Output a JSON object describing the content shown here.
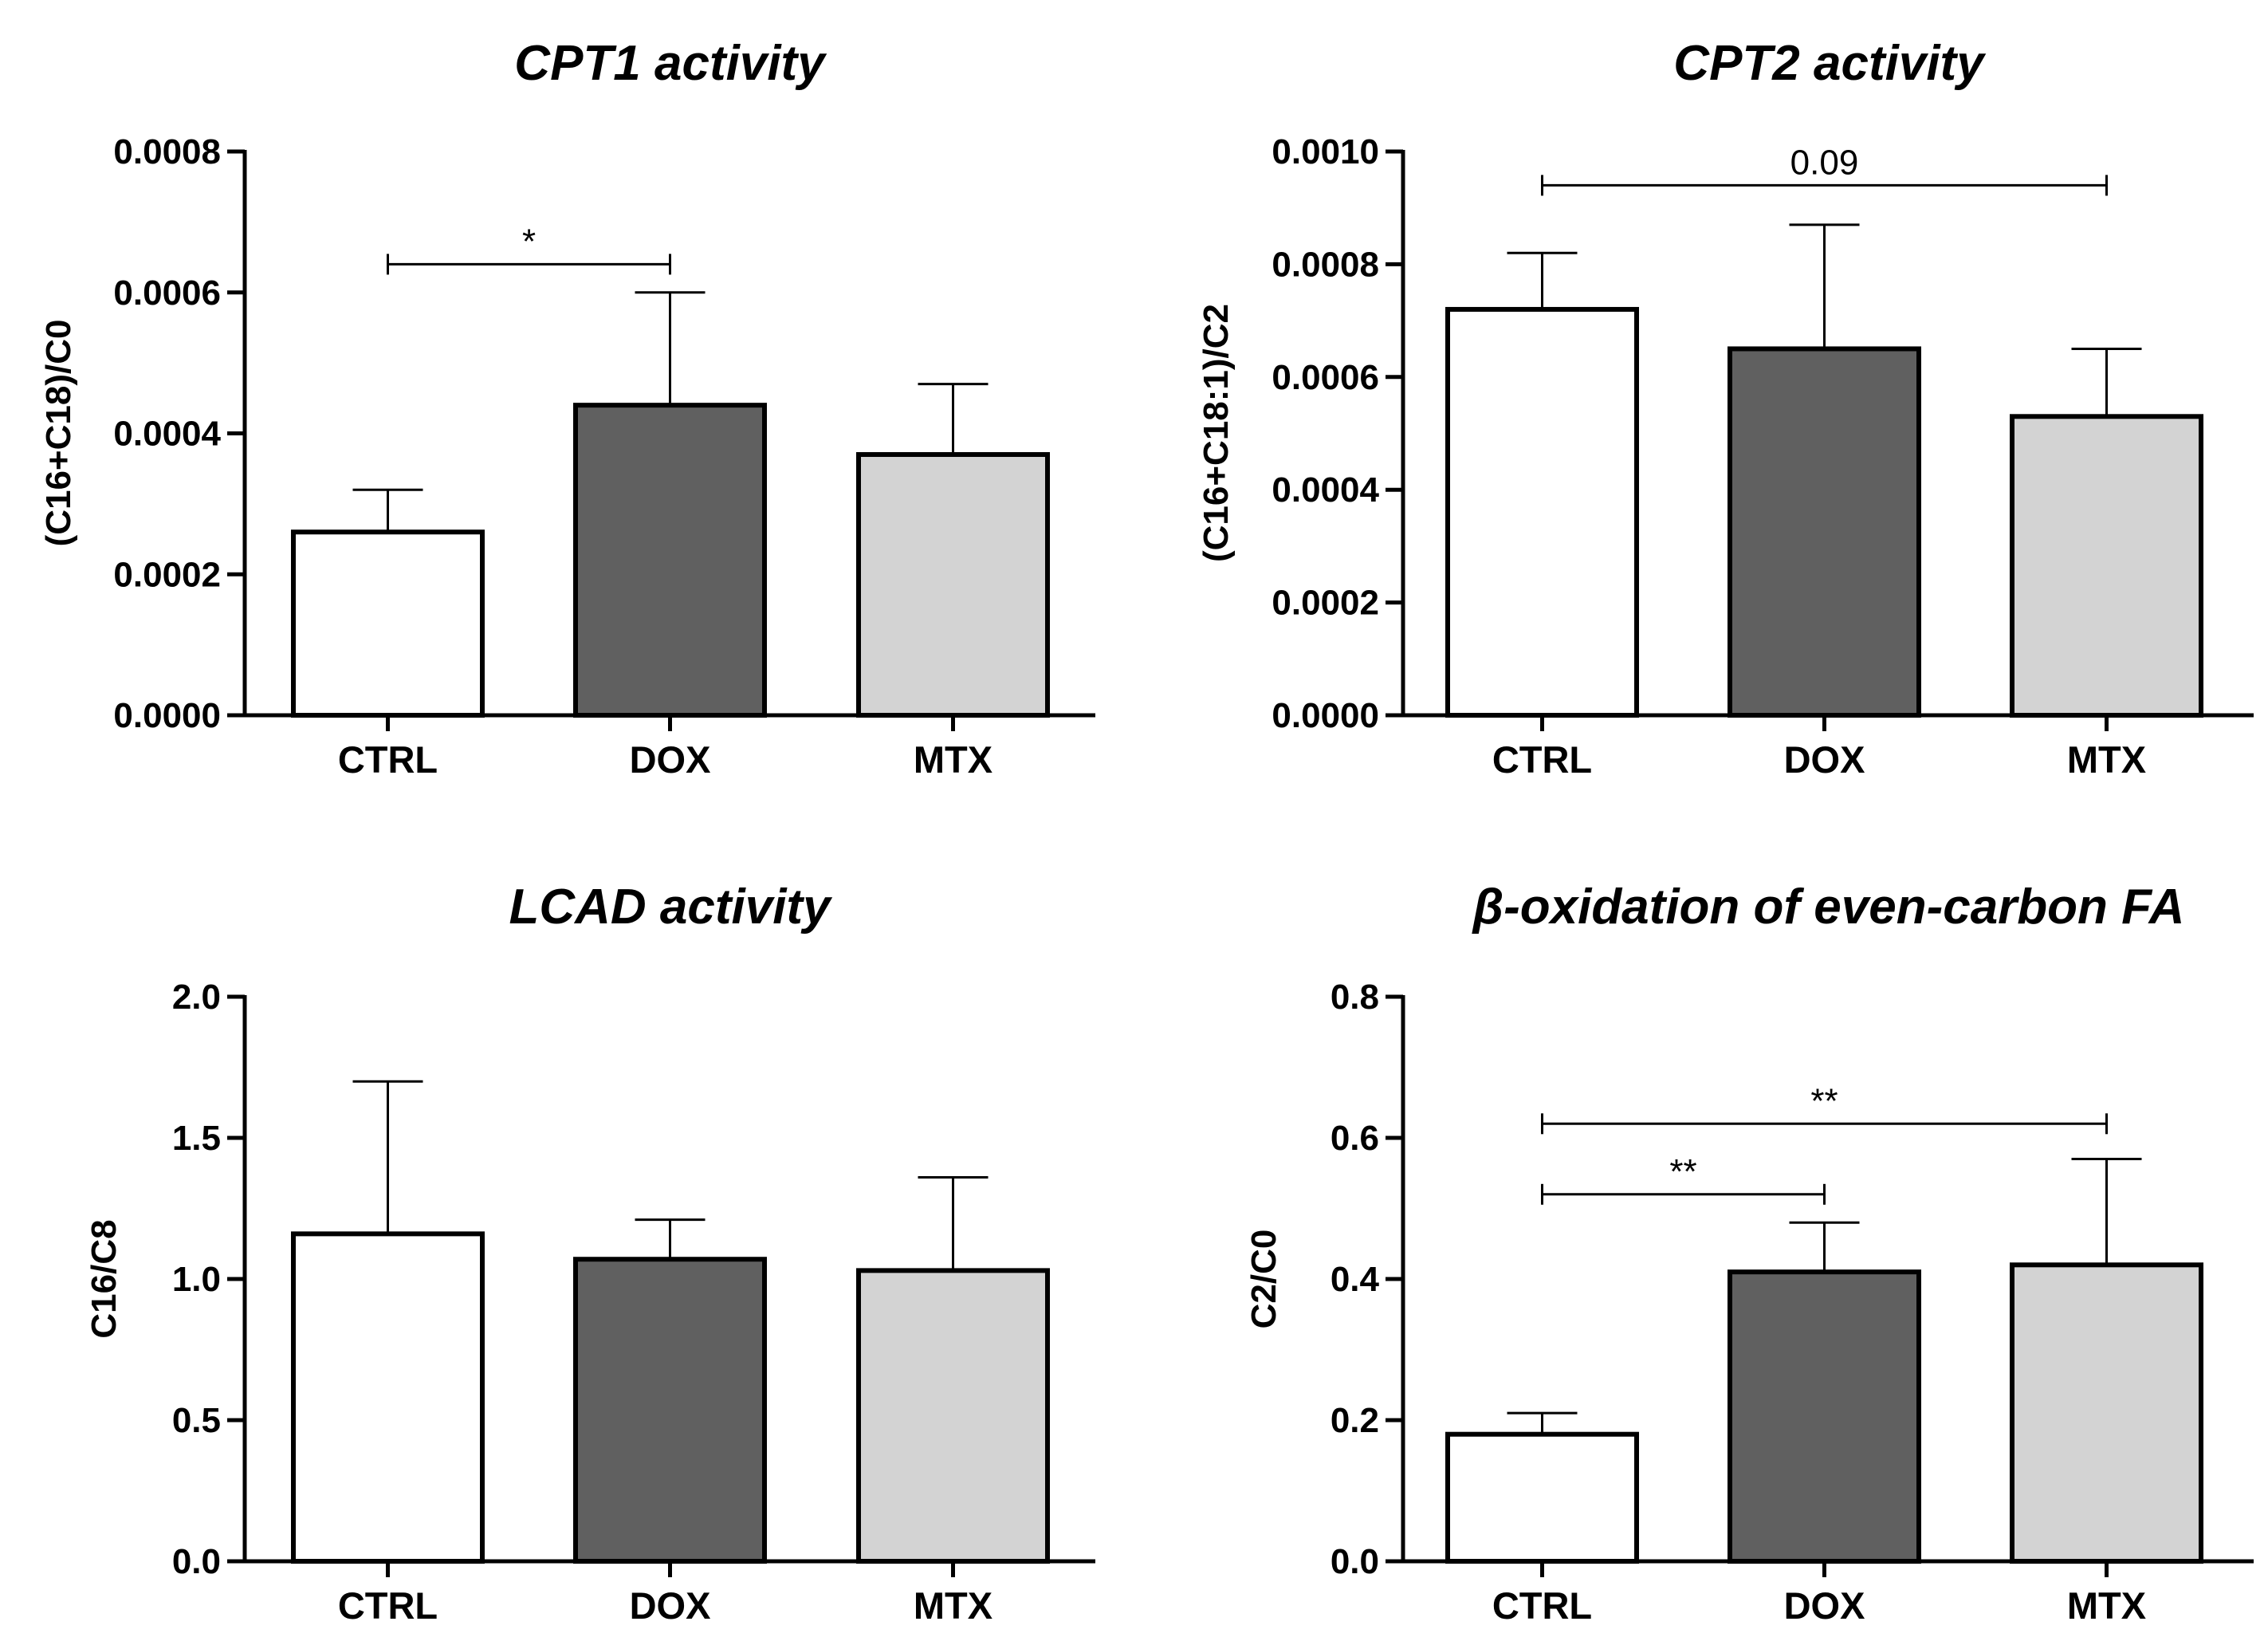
{
  "chart_data": [
    {
      "type": "bar",
      "title": "CPT1 activity",
      "ylabel": "(C16+C18)/C0",
      "xlabel": "",
      "categories": [
        "CTRL",
        "DOX",
        "MTX"
      ],
      "values": [
        0.00026,
        0.00044,
        0.00037
      ],
      "errors": [
        6e-05,
        0.00016,
        0.0001
      ],
      "colors": [
        "#ffffff",
        "#606060",
        "#d3d3d3"
      ],
      "ylim": [
        0,
        0.0008
      ],
      "ticks": [
        "0.0000",
        "0.0002",
        "0.0004",
        "0.0006",
        "0.0008"
      ],
      "significance": [
        {
          "from": 0,
          "to": 1,
          "level": 0.00064,
          "label": "*"
        }
      ]
    },
    {
      "type": "bar",
      "title": "CPT2 activity",
      "ylabel": "(C16+C18:1)/C2",
      "xlabel": "",
      "categories": [
        "CTRL",
        "DOX",
        "MTX"
      ],
      "values": [
        0.00072,
        0.00065,
        0.00053
      ],
      "errors": [
        0.0001,
        0.00022,
        0.00012
      ],
      "colors": [
        "#ffffff",
        "#606060",
        "#d3d3d3"
      ],
      "ylim": [
        0,
        0.001
      ],
      "ticks": [
        "0.0000",
        "0.0002",
        "0.0004",
        "0.0006",
        "0.0008",
        "0.0010"
      ],
      "significance": [
        {
          "from": 0,
          "to": 2,
          "level": 0.00094,
          "label": "0.09"
        }
      ]
    },
    {
      "type": "bar",
      "title": "LCAD activity",
      "ylabel": "C16/C8",
      "xlabel": "",
      "categories": [
        "CTRL",
        "DOX",
        "MTX"
      ],
      "values": [
        1.16,
        1.07,
        1.03
      ],
      "errors": [
        0.54,
        0.14,
        0.33
      ],
      "colors": [
        "#ffffff",
        "#606060",
        "#d3d3d3"
      ],
      "ylim": [
        0,
        2.0
      ],
      "ticks": [
        "0.0",
        "0.5",
        "1.0",
        "1.5",
        "2.0"
      ],
      "significance": []
    },
    {
      "type": "bar",
      "title": "β-oxidation of even-carbon FA",
      "ylabel": "C2/C0",
      "xlabel": "",
      "categories": [
        "CTRL",
        "DOX",
        "MTX"
      ],
      "values": [
        0.18,
        0.41,
        0.42
      ],
      "errors": [
        0.03,
        0.07,
        0.15
      ],
      "colors": [
        "#ffffff",
        "#606060",
        "#d3d3d3"
      ],
      "ylim": [
        0,
        0.8
      ],
      "ticks": [
        "0.0",
        "0.2",
        "0.4",
        "0.6",
        "0.8"
      ],
      "significance": [
        {
          "from": 0,
          "to": 1,
          "level": 0.52,
          "label": "**"
        },
        {
          "from": 0,
          "to": 2,
          "level": 0.62,
          "label": "**"
        }
      ]
    }
  ]
}
